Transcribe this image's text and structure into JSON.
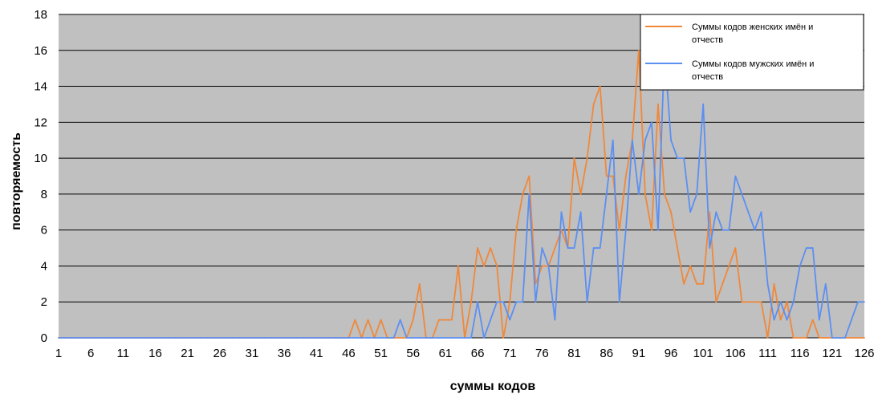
{
  "chart_data": {
    "type": "line",
    "title": "",
    "xlabel": "суммы кодов",
    "ylabel": "повторяемость",
    "x_start": 1,
    "x_end": 126,
    "xticks": [
      1,
      6,
      11,
      16,
      21,
      26,
      31,
      36,
      41,
      46,
      51,
      56,
      61,
      66,
      71,
      76,
      81,
      86,
      91,
      96,
      101,
      106,
      111,
      116,
      121,
      126
    ],
    "ylim": [
      0,
      18
    ],
    "yticks": [
      0,
      2,
      4,
      6,
      8,
      10,
      12,
      14,
      16,
      18
    ],
    "grid": "horizontal",
    "plot_background": "#c0c0c0",
    "legend_position": "top-right",
    "series": [
      {
        "name": "Суммы кодов женских имён и отчеств",
        "color": "#f0883a",
        "values": [
          0,
          0,
          0,
          0,
          0,
          0,
          0,
          0,
          0,
          0,
          0,
          0,
          0,
          0,
          0,
          0,
          0,
          0,
          0,
          0,
          0,
          0,
          0,
          0,
          0,
          0,
          0,
          0,
          0,
          0,
          0,
          0,
          0,
          0,
          0,
          0,
          0,
          0,
          0,
          0,
          0,
          0,
          0,
          0,
          0,
          0,
          1,
          0,
          1,
          0,
          1,
          0,
          0,
          0,
          0,
          1,
          3,
          0,
          0,
          1,
          1,
          1,
          4,
          0,
          2,
          5,
          4,
          5,
          4,
          0,
          2,
          6,
          8,
          9,
          3,
          4,
          4,
          5,
          6,
          5,
          10,
          8,
          10,
          13,
          14,
          9,
          9,
          6,
          9,
          11,
          16,
          8,
          6,
          13,
          8,
          7,
          5,
          3,
          4,
          3,
          3,
          7,
          2,
          3,
          4,
          5,
          2,
          2,
          2,
          2,
          0,
          3,
          1,
          2,
          0,
          0,
          0,
          1,
          0,
          0,
          0,
          0,
          0,
          0,
          0,
          0
        ]
      },
      {
        "name": "Суммы кодов мужских имён и отчеств",
        "color": "#5b8ff2",
        "values": [
          0,
          0,
          0,
          0,
          0,
          0,
          0,
          0,
          0,
          0,
          0,
          0,
          0,
          0,
          0,
          0,
          0,
          0,
          0,
          0,
          0,
          0,
          0,
          0,
          0,
          0,
          0,
          0,
          0,
          0,
          0,
          0,
          0,
          0,
          0,
          0,
          0,
          0,
          0,
          0,
          0,
          0,
          0,
          0,
          0,
          0,
          0,
          0,
          0,
          0,
          0,
          0,
          0,
          1,
          0,
          0,
          0,
          0,
          0,
          0,
          0,
          0,
          0,
          0,
          0,
          2,
          0,
          1,
          2,
          2,
          1,
          2,
          2,
          8,
          2,
          5,
          4,
          1,
          7,
          5,
          5,
          7,
          2,
          5,
          5,
          8,
          11,
          2,
          6,
          11,
          8,
          11,
          12,
          6,
          16,
          11,
          10,
          10,
          7,
          8,
          13,
          5,
          7,
          6,
          6,
          9,
          8,
          7,
          6,
          7,
          3,
          1,
          2,
          1,
          2,
          4,
          5,
          5,
          1,
          3,
          0,
          0,
          0,
          1,
          2,
          2
        ]
      }
    ]
  }
}
